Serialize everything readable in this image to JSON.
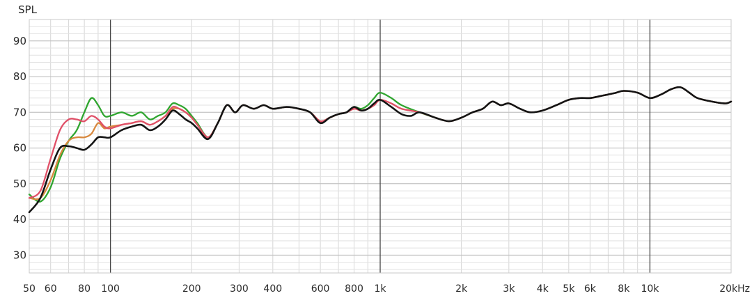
{
  "chart_data": {
    "type": "line",
    "title": "",
    "ylabel": "SPL",
    "xlabel": "",
    "x_scale": "log",
    "xlim": [
      50,
      20000
    ],
    "ylim": [
      25,
      96
    ],
    "grid": true,
    "y_ticks": [
      {
        "value": 90,
        "label": "90"
      },
      {
        "value": 80,
        "label": "80"
      },
      {
        "value": 70,
        "label": "70"
      },
      {
        "value": 60,
        "label": "60"
      },
      {
        "value": 50,
        "label": "50"
      },
      {
        "value": 40,
        "label": "40"
      },
      {
        "value": 30,
        "label": "30"
      }
    ],
    "x_ticks": [
      {
        "value": 50,
        "label": "50"
      },
      {
        "value": 60,
        "label": "60"
      },
      {
        "value": 80,
        "label": "80"
      },
      {
        "value": 100,
        "label": "100"
      },
      {
        "value": 200,
        "label": "200"
      },
      {
        "value": 300,
        "label": "300"
      },
      {
        "value": 400,
        "label": "400"
      },
      {
        "value": 600,
        "label": "600"
      },
      {
        "value": 800,
        "label": "800"
      },
      {
        "value": 1000,
        "label": "1k"
      },
      {
        "value": 2000,
        "label": "2k"
      },
      {
        "value": 3000,
        "label": "3k"
      },
      {
        "value": 4000,
        "label": "4k"
      },
      {
        "value": 5000,
        "label": "5k"
      },
      {
        "value": 6000,
        "label": "6k"
      },
      {
        "value": 8000,
        "label": "8k"
      },
      {
        "value": 10000,
        "label": "10k"
      },
      {
        "value": 20000,
        "label": "20kHz"
      }
    ],
    "series": [
      {
        "color": "#2fa52f",
        "points": [
          [
            50,
            47
          ],
          [
            55,
            45
          ],
          [
            60,
            49
          ],
          [
            65,
            57
          ],
          [
            70,
            62
          ],
          [
            75,
            65
          ],
          [
            80,
            70
          ],
          [
            85,
            74
          ],
          [
            90,
            72
          ],
          [
            95,
            69
          ],
          [
            100,
            69
          ],
          [
            110,
            70
          ],
          [
            120,
            69
          ],
          [
            130,
            70
          ],
          [
            140,
            68
          ],
          [
            150,
            69
          ],
          [
            160,
            70
          ],
          [
            170,
            72.5
          ],
          [
            180,
            72
          ],
          [
            190,
            71
          ],
          [
            200,
            69
          ],
          [
            210,
            67
          ],
          [
            230,
            63
          ],
          [
            250,
            67
          ],
          [
            270,
            72
          ],
          [
            290,
            70
          ],
          [
            310,
            72
          ],
          [
            340,
            71
          ],
          [
            370,
            72
          ],
          [
            400,
            71
          ],
          [
            450,
            71.5
          ],
          [
            500,
            71
          ],
          [
            550,
            70
          ],
          [
            600,
            67.5
          ],
          [
            650,
            68.5
          ],
          [
            700,
            69.5
          ],
          [
            750,
            70
          ],
          [
            800,
            71.5
          ],
          [
            850,
            71
          ],
          [
            900,
            72
          ],
          [
            950,
            74
          ],
          [
            1000,
            75.5
          ],
          [
            1100,
            74
          ],
          [
            1200,
            72
          ],
          [
            1400,
            70
          ],
          [
            1600,
            68.5
          ],
          [
            1800,
            67.5
          ],
          [
            2000,
            68.5
          ],
          [
            2200,
            70
          ],
          [
            2400,
            71
          ],
          [
            2600,
            73
          ],
          [
            2800,
            72
          ],
          [
            3000,
            72.5
          ],
          [
            3300,
            71
          ],
          [
            3600,
            70
          ],
          [
            4000,
            70.5
          ],
          [
            4500,
            72
          ],
          [
            5000,
            73.5
          ],
          [
            5500,
            74
          ],
          [
            6000,
            74
          ],
          [
            6500,
            74.5
          ],
          [
            7000,
            75
          ],
          [
            7500,
            75.5
          ],
          [
            8000,
            76
          ],
          [
            9000,
            75.5
          ],
          [
            10000,
            74
          ],
          [
            11000,
            75
          ],
          [
            12000,
            76.5
          ],
          [
            13000,
            77
          ],
          [
            14000,
            75.5
          ],
          [
            15000,
            74
          ],
          [
            17000,
            73
          ],
          [
            19000,
            72.5
          ],
          [
            20000,
            73
          ]
        ]
      },
      {
        "color": "#d8883e",
        "points": [
          [
            50,
            46
          ],
          [
            55,
            46
          ],
          [
            60,
            51
          ],
          [
            65,
            58
          ],
          [
            70,
            62
          ],
          [
            75,
            63
          ],
          [
            80,
            63
          ],
          [
            85,
            64
          ],
          [
            90,
            67
          ],
          [
            95,
            65.5
          ],
          [
            100,
            66
          ],
          [
            110,
            66.5
          ],
          [
            120,
            67
          ],
          [
            130,
            67.5
          ],
          [
            140,
            66.5
          ],
          [
            150,
            67.5
          ],
          [
            160,
            69
          ],
          [
            170,
            71
          ],
          [
            180,
            71
          ],
          [
            190,
            70
          ],
          [
            200,
            68.5
          ],
          [
            210,
            66.5
          ],
          [
            230,
            63
          ],
          [
            250,
            67
          ],
          [
            270,
            72
          ],
          [
            290,
            70
          ],
          [
            310,
            72
          ],
          [
            340,
            71
          ],
          [
            370,
            72
          ],
          [
            400,
            71
          ],
          [
            450,
            71.5
          ],
          [
            500,
            71
          ],
          [
            550,
            70
          ],
          [
            600,
            67.5
          ],
          [
            650,
            68.5
          ],
          [
            700,
            69.5
          ],
          [
            750,
            70
          ],
          [
            800,
            71
          ],
          [
            850,
            70.5
          ],
          [
            900,
            71
          ],
          [
            950,
            72
          ],
          [
            1000,
            73.5
          ],
          [
            1100,
            72.5
          ],
          [
            1200,
            71
          ],
          [
            1400,
            70
          ],
          [
            1600,
            68.5
          ],
          [
            1800,
            67.5
          ],
          [
            2000,
            68.5
          ],
          [
            2200,
            70
          ],
          [
            2400,
            71
          ],
          [
            2600,
            73
          ],
          [
            2800,
            72
          ],
          [
            3000,
            72.5
          ],
          [
            3300,
            71
          ],
          [
            3600,
            70
          ],
          [
            4000,
            70.5
          ],
          [
            4500,
            72
          ],
          [
            5000,
            73.5
          ],
          [
            5500,
            74
          ],
          [
            6000,
            74
          ],
          [
            6500,
            74.5
          ],
          [
            7000,
            75
          ],
          [
            7500,
            75.5
          ],
          [
            8000,
            76
          ],
          [
            9000,
            75.5
          ],
          [
            10000,
            74
          ],
          [
            11000,
            75
          ],
          [
            12000,
            76.5
          ],
          [
            13000,
            77
          ],
          [
            14000,
            75.5
          ],
          [
            15000,
            74
          ],
          [
            17000,
            73
          ],
          [
            19000,
            72.5
          ],
          [
            20000,
            73
          ]
        ]
      },
      {
        "color": "#e05068",
        "points": [
          [
            50,
            46
          ],
          [
            55,
            48
          ],
          [
            60,
            57
          ],
          [
            65,
            65
          ],
          [
            70,
            68
          ],
          [
            75,
            68
          ],
          [
            80,
            67.5
          ],
          [
            85,
            69
          ],
          [
            90,
            68
          ],
          [
            95,
            66
          ],
          [
            100,
            65.5
          ],
          [
            110,
            66.5
          ],
          [
            120,
            67
          ],
          [
            130,
            67.5
          ],
          [
            140,
            66.5
          ],
          [
            150,
            67.5
          ],
          [
            160,
            69
          ],
          [
            170,
            71.5
          ],
          [
            180,
            71
          ],
          [
            190,
            70
          ],
          [
            200,
            68.5
          ],
          [
            210,
            66.5
          ],
          [
            230,
            63
          ],
          [
            250,
            67
          ],
          [
            270,
            72
          ],
          [
            290,
            70
          ],
          [
            310,
            72
          ],
          [
            340,
            71
          ],
          [
            370,
            72
          ],
          [
            400,
            71
          ],
          [
            450,
            71.5
          ],
          [
            500,
            71
          ],
          [
            550,
            70
          ],
          [
            600,
            67.5
          ],
          [
            650,
            68.5
          ],
          [
            700,
            69.5
          ],
          [
            750,
            70
          ],
          [
            800,
            71
          ],
          [
            850,
            70.5
          ],
          [
            900,
            71
          ],
          [
            950,
            72
          ],
          [
            1000,
            73.5
          ],
          [
            1100,
            72.5
          ],
          [
            1200,
            71
          ],
          [
            1400,
            70
          ],
          [
            1600,
            68.5
          ],
          [
            1800,
            67.5
          ],
          [
            2000,
            68.5
          ],
          [
            2200,
            70
          ],
          [
            2400,
            71
          ],
          [
            2600,
            73
          ],
          [
            2800,
            72
          ],
          [
            3000,
            72.5
          ],
          [
            3300,
            71
          ],
          [
            3600,
            70
          ],
          [
            4000,
            70.5
          ],
          [
            4500,
            72
          ],
          [
            5000,
            73.5
          ],
          [
            5500,
            74
          ],
          [
            6000,
            74
          ],
          [
            6500,
            74.5
          ],
          [
            7000,
            75
          ],
          [
            7500,
            75.5
          ],
          [
            8000,
            76
          ],
          [
            9000,
            75.5
          ],
          [
            10000,
            74
          ],
          [
            11000,
            75
          ],
          [
            12000,
            76.5
          ],
          [
            13000,
            77
          ],
          [
            14000,
            75.5
          ],
          [
            15000,
            74
          ],
          [
            17000,
            73
          ],
          [
            19000,
            72.5
          ],
          [
            20000,
            73
          ]
        ]
      },
      {
        "color": "#141414",
        "points": [
          [
            50,
            42
          ],
          [
            55,
            46
          ],
          [
            60,
            54
          ],
          [
            65,
            60
          ],
          [
            70,
            60.5
          ],
          [
            75,
            60
          ],
          [
            80,
            59.5
          ],
          [
            85,
            61
          ],
          [
            90,
            63
          ],
          [
            95,
            63
          ],
          [
            100,
            63
          ],
          [
            110,
            65
          ],
          [
            120,
            66
          ],
          [
            130,
            66.5
          ],
          [
            140,
            65
          ],
          [
            150,
            66
          ],
          [
            160,
            68
          ],
          [
            170,
            70.5
          ],
          [
            180,
            69.5
          ],
          [
            190,
            68
          ],
          [
            200,
            67
          ],
          [
            210,
            65.5
          ],
          [
            230,
            62.5
          ],
          [
            250,
            67
          ],
          [
            270,
            72
          ],
          [
            290,
            70
          ],
          [
            310,
            72
          ],
          [
            340,
            71
          ],
          [
            370,
            72
          ],
          [
            400,
            71
          ],
          [
            450,
            71.5
          ],
          [
            500,
            71
          ],
          [
            550,
            70
          ],
          [
            600,
            67
          ],
          [
            650,
            68.5
          ],
          [
            700,
            69.5
          ],
          [
            750,
            70
          ],
          [
            800,
            71.5
          ],
          [
            850,
            70.5
          ],
          [
            900,
            71
          ],
          [
            950,
            72.5
          ],
          [
            1000,
            73.5
          ],
          [
            1100,
            71.5
          ],
          [
            1200,
            69.5
          ],
          [
            1300,
            69
          ],
          [
            1400,
            70
          ],
          [
            1600,
            68.5
          ],
          [
            1800,
            67.5
          ],
          [
            2000,
            68.5
          ],
          [
            2200,
            70
          ],
          [
            2400,
            71
          ],
          [
            2600,
            73
          ],
          [
            2800,
            72
          ],
          [
            3000,
            72.5
          ],
          [
            3300,
            71
          ],
          [
            3600,
            70
          ],
          [
            4000,
            70.5
          ],
          [
            4500,
            72
          ],
          [
            5000,
            73.5
          ],
          [
            5500,
            74
          ],
          [
            6000,
            74
          ],
          [
            6500,
            74.5
          ],
          [
            7000,
            75
          ],
          [
            7500,
            75.5
          ],
          [
            8000,
            76
          ],
          [
            9000,
            75.5
          ],
          [
            10000,
            74
          ],
          [
            11000,
            75
          ],
          [
            12000,
            76.5
          ],
          [
            13000,
            77
          ],
          [
            14000,
            75.5
          ],
          [
            15000,
            74
          ],
          [
            17000,
            73
          ],
          [
            19000,
            72.5
          ],
          [
            20000,
            73
          ]
        ]
      }
    ]
  }
}
